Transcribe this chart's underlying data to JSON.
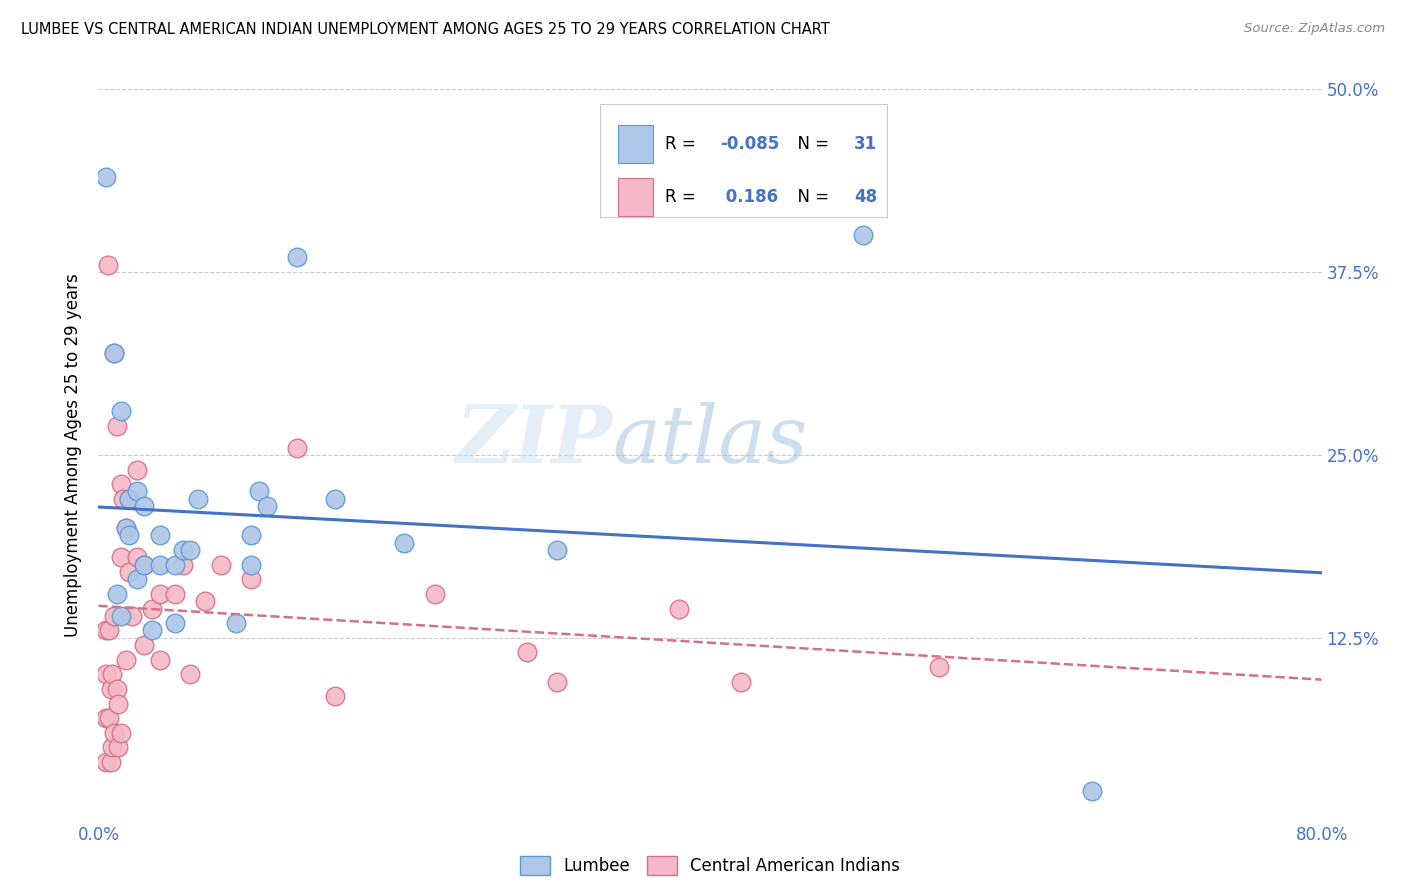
{
  "title": "LUMBEE VS CENTRAL AMERICAN INDIAN UNEMPLOYMENT AMONG AGES 25 TO 29 YEARS CORRELATION CHART",
  "source": "Source: ZipAtlas.com",
  "ylabel": "Unemployment Among Ages 25 to 29 years",
  "xlim": [
    0.0,
    0.8
  ],
  "ylim": [
    0.0,
    0.5
  ],
  "xticks": [
    0.0,
    0.1,
    0.2,
    0.3,
    0.4,
    0.5,
    0.6,
    0.7,
    0.8
  ],
  "xticklabels": [
    "0.0%",
    "",
    "",
    "",
    "",
    "",
    "",
    "",
    "80.0%"
  ],
  "yticks": [
    0.0,
    0.125,
    0.25,
    0.375,
    0.5
  ],
  "yticklabels": [
    "",
    "12.5%",
    "25.0%",
    "37.5%",
    "50.0%"
  ],
  "lumbee_color": "#aec6e8",
  "lumbee_edge_color": "#5b9bd5",
  "central_color": "#f4b8c8",
  "central_edge_color": "#d4708a",
  "lumbee_R": -0.085,
  "lumbee_N": 31,
  "central_R": 0.186,
  "central_N": 48,
  "lumbee_line_color": "#4472c4",
  "central_line_color": "#d4708a",
  "text_color": "#4472c4",
  "watermark_color": "#d0e8f4",
  "lumbee_x": [
    0.005,
    0.01,
    0.012,
    0.015,
    0.015,
    0.018,
    0.02,
    0.02,
    0.025,
    0.025,
    0.03,
    0.03,
    0.035,
    0.04,
    0.04,
    0.05,
    0.05,
    0.055,
    0.06,
    0.065,
    0.09,
    0.1,
    0.1,
    0.105,
    0.11,
    0.13,
    0.155,
    0.2,
    0.3,
    0.5,
    0.65
  ],
  "lumbee_y": [
    0.44,
    0.32,
    0.155,
    0.14,
    0.28,
    0.2,
    0.22,
    0.195,
    0.225,
    0.165,
    0.215,
    0.175,
    0.13,
    0.195,
    0.175,
    0.175,
    0.135,
    0.185,
    0.185,
    0.22,
    0.135,
    0.195,
    0.175,
    0.225,
    0.215,
    0.385,
    0.22,
    0.19,
    0.185,
    0.4,
    0.02
  ],
  "central_x": [
    0.005,
    0.005,
    0.005,
    0.005,
    0.006,
    0.007,
    0.007,
    0.008,
    0.008,
    0.009,
    0.009,
    0.01,
    0.01,
    0.01,
    0.012,
    0.012,
    0.013,
    0.013,
    0.015,
    0.015,
    0.015,
    0.016,
    0.018,
    0.018,
    0.02,
    0.02,
    0.022,
    0.025,
    0.025,
    0.03,
    0.03,
    0.035,
    0.04,
    0.04,
    0.05,
    0.055,
    0.06,
    0.07,
    0.08,
    0.1,
    0.13,
    0.155,
    0.22,
    0.28,
    0.3,
    0.38,
    0.42,
    0.55
  ],
  "central_y": [
    0.13,
    0.1,
    0.07,
    0.04,
    0.38,
    0.13,
    0.07,
    0.09,
    0.04,
    0.1,
    0.05,
    0.32,
    0.14,
    0.06,
    0.27,
    0.09,
    0.08,
    0.05,
    0.23,
    0.18,
    0.06,
    0.22,
    0.2,
    0.11,
    0.22,
    0.17,
    0.14,
    0.24,
    0.18,
    0.175,
    0.12,
    0.145,
    0.155,
    0.11,
    0.155,
    0.175,
    0.1,
    0.15,
    0.175,
    0.165,
    0.255,
    0.085,
    0.155,
    0.115,
    0.095,
    0.145,
    0.095,
    0.105
  ]
}
